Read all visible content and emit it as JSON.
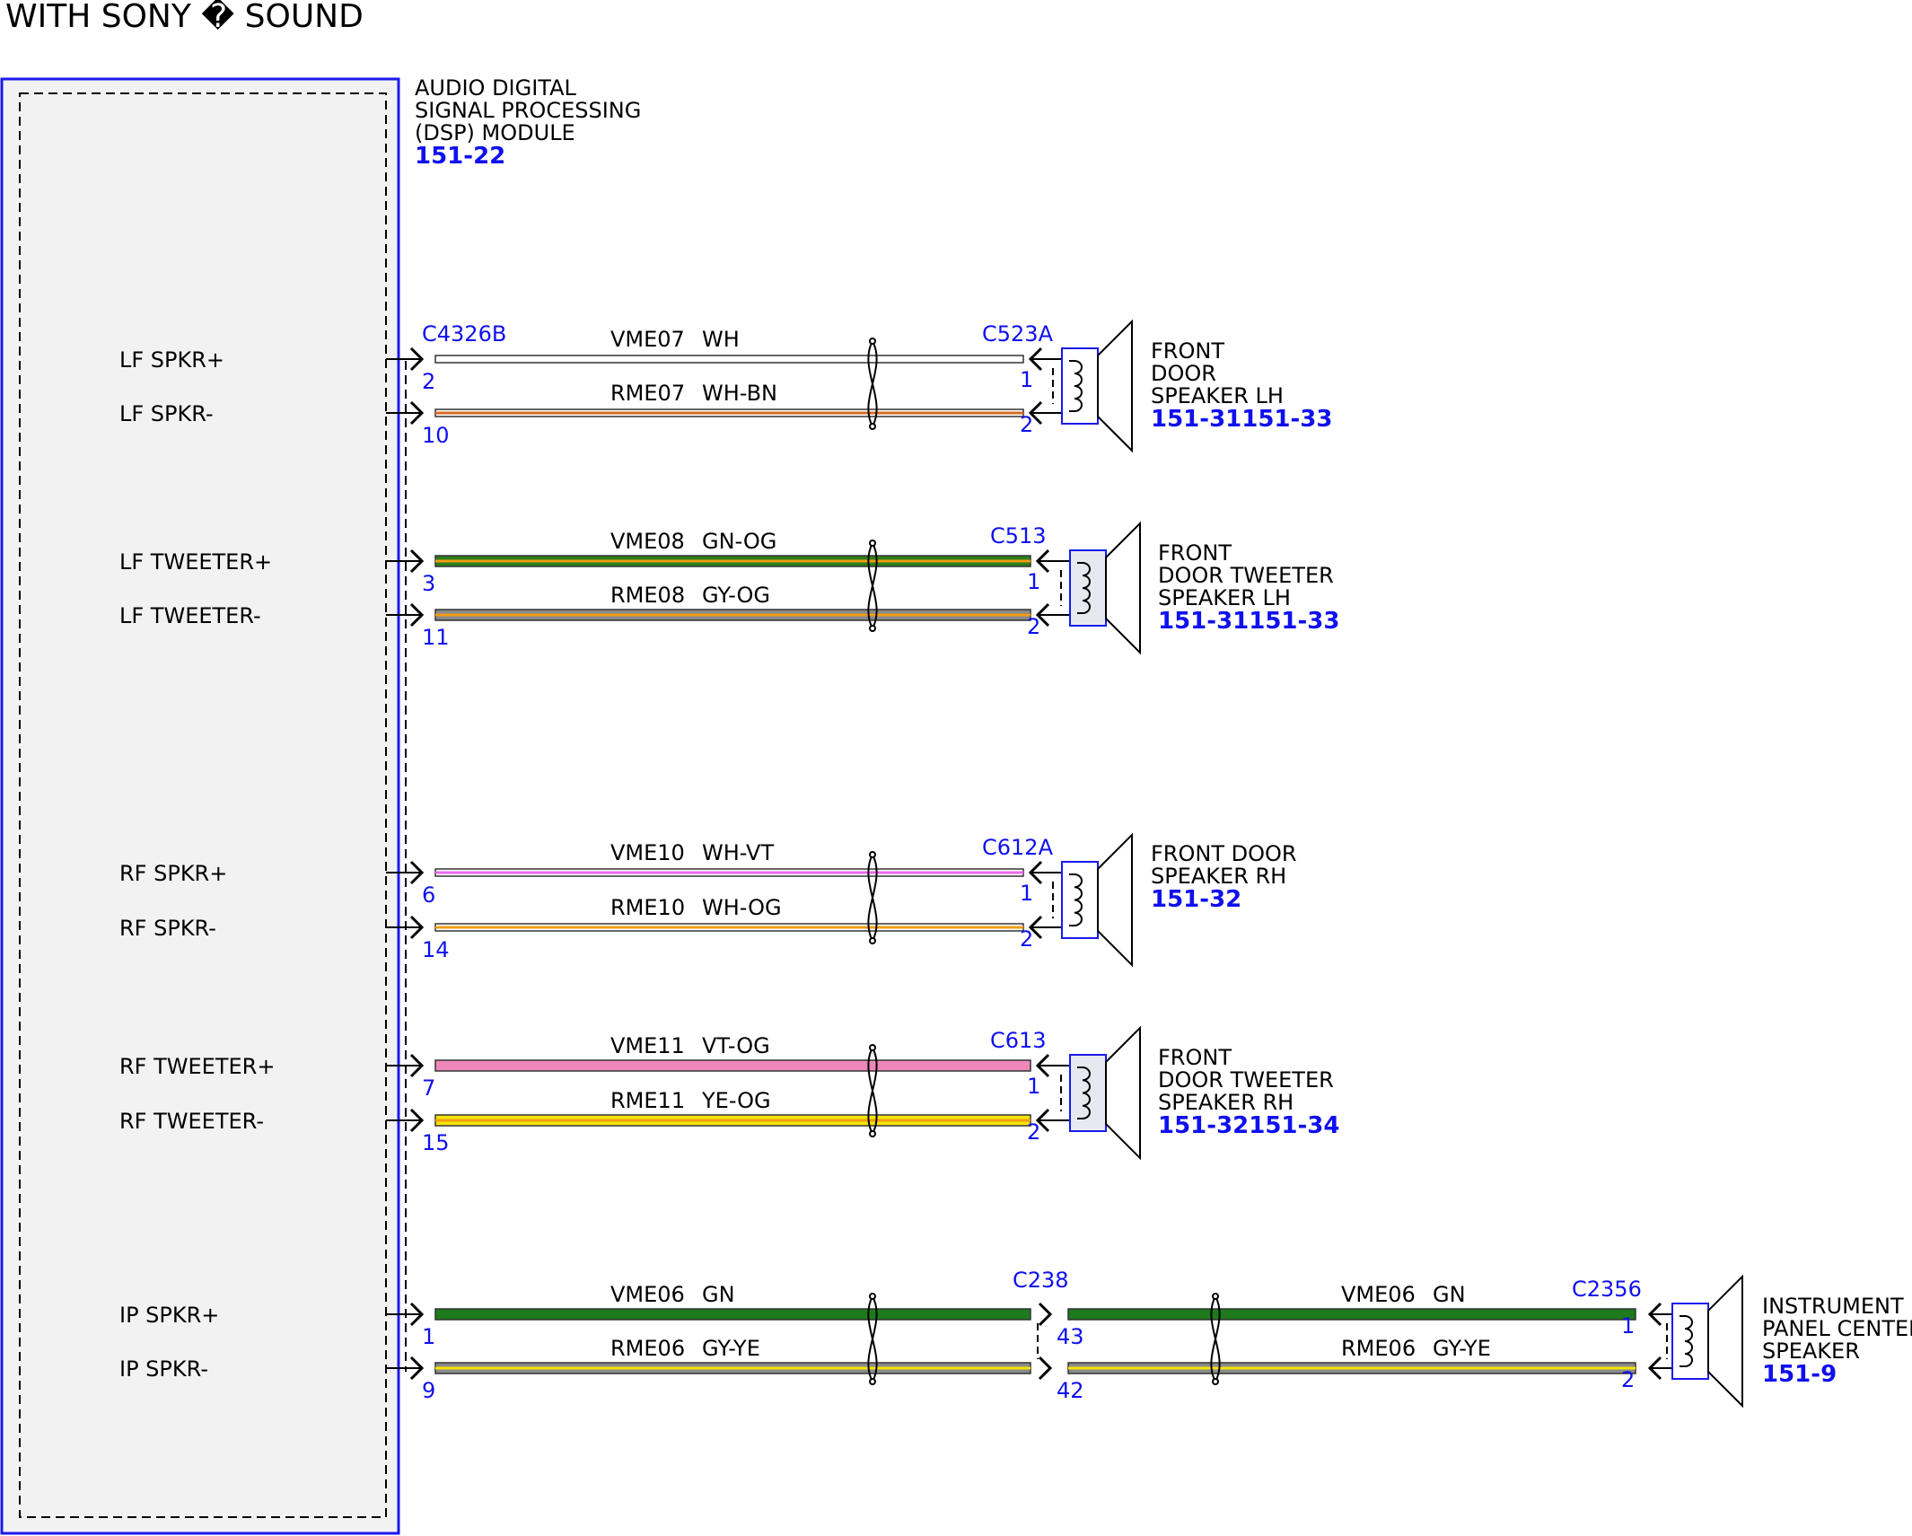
{
  "title": "WITH SONY � SOUND",
  "module": {
    "name_lines": [
      "AUDIO DIGITAL",
      "SIGNAL PROCESSING",
      "(DSP) MODULE"
    ],
    "ref": "151-22",
    "border_color": "#1a1aee",
    "fill_color": "#f2f2f2"
  },
  "groups": [
    {
      "connector_left": "C4326B",
      "connector_right": "C523A",
      "wires": [
        {
          "signal": "LF SPKR+",
          "circuit": "VME07",
          "color_code": "WH",
          "pin_left": "2",
          "pin_right": "1",
          "base": "#ffffff",
          "stripe": "#ffffff"
        },
        {
          "signal": "LF SPKR-",
          "circuit": "RME07",
          "color_code": "WH-BN",
          "pin_left": "10",
          "pin_right": "2",
          "base": "#ffffff",
          "stripe": "#d2691e"
        }
      ],
      "device": {
        "lines": [
          "FRONT",
          "DOOR",
          "SPEAKER LH"
        ],
        "ref": "151-31151-33"
      }
    },
    {
      "connector_right": "C513",
      "wires": [
        {
          "signal": "LF TWEETER+",
          "circuit": "VME08",
          "color_code": "GN-OG",
          "pin_left": "3",
          "pin_right": "1",
          "base": "#2e7d1a",
          "stripe": "#f39c12"
        },
        {
          "signal": "LF TWEETER-",
          "circuit": "RME08",
          "color_code": "GY-OG",
          "pin_left": "11",
          "pin_right": "2",
          "base": "#8a8a8a",
          "stripe": "#f39c12"
        }
      ],
      "device": {
        "lines": [
          "FRONT",
          "DOOR TWEETER",
          "SPEAKER LH"
        ],
        "ref": "151-31151-33"
      }
    },
    {
      "connector_right": "C612A",
      "wires": [
        {
          "signal": "RF SPKR+",
          "circuit": "VME10",
          "color_code": "WH-VT",
          "pin_left": "6",
          "pin_right": "1",
          "base": "#ffffff",
          "stripe": "#ee66ee"
        },
        {
          "signal": "RF SPKR-",
          "circuit": "RME10",
          "color_code": "WH-OG",
          "pin_left": "14",
          "pin_right": "2",
          "base": "#ffffff",
          "stripe": "#f39c12"
        }
      ],
      "device": {
        "lines": [
          "FRONT DOOR",
          "SPEAKER RH"
        ],
        "ref": "151-32"
      }
    },
    {
      "connector_right": "C613",
      "wires": [
        {
          "signal": "RF TWEETER+",
          "circuit": "VME11",
          "color_code": "VT-OG",
          "pin_left": "7",
          "pin_right": "1",
          "base": "#ee88bb",
          "stripe": "#ee88bb"
        },
        {
          "signal": "RF TWEETER-",
          "circuit": "RME11",
          "color_code": "YE-OG",
          "pin_left": "15",
          "pin_right": "2",
          "base": "#f5e400",
          "stripe": "#f39c12"
        }
      ],
      "device": {
        "lines": [
          "FRONT",
          "DOOR TWEETER",
          "SPEAKER RH"
        ],
        "ref": "151-32151-34"
      }
    },
    {
      "connector_mid": "C238",
      "connector_right": "C2356",
      "wires": [
        {
          "signal": "IP SPKR+",
          "circuit": "VME06",
          "color_code": "GN",
          "pin_left": "1",
          "pin_mid_in": "",
          "pin_mid_out": "43",
          "pin_right": "1",
          "base": "#1d7a1d",
          "stripe": "#1d7a1d"
        },
        {
          "signal": "IP SPKR-",
          "circuit": "RME06",
          "color_code": "GY-YE",
          "pin_left": "9",
          "pin_mid_in": "",
          "pin_mid_out": "42",
          "pin_right": "2",
          "base": "#8a8a8a",
          "stripe": "#f5e400"
        }
      ],
      "device": {
        "lines": [
          "INSTRUMENT",
          "PANEL CENTER",
          "SPEAKER"
        ],
        "ref": "151-9"
      }
    }
  ]
}
